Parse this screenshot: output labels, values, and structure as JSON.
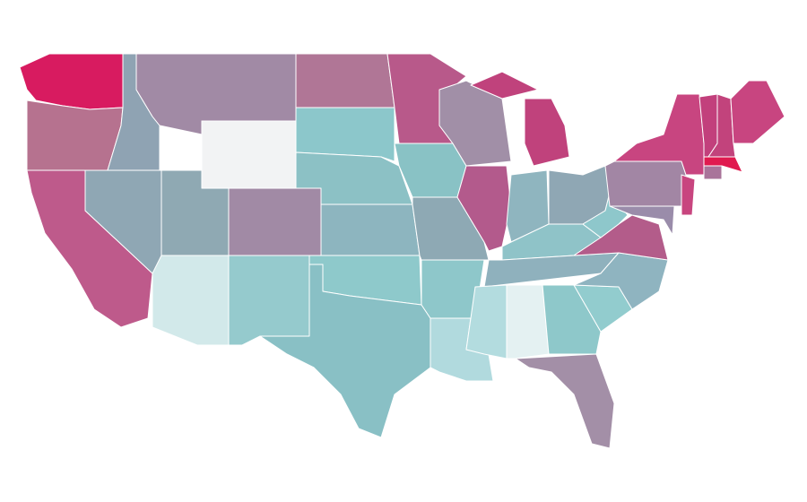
{
  "map": {
    "regions": [
      {
        "color": "#d81b60"
      },
      {
        "color": "#b6728f"
      },
      {
        "color": "#be5a8b"
      },
      {
        "color": "#8fa7b4"
      },
      {
        "color": "#8fa3b3"
      },
      {
        "color": "#a18aa5"
      },
      {
        "color": "#f2f3f4"
      },
      {
        "color": "#8fa9b3"
      },
      {
        "color": "#d2e9ea"
      },
      {
        "color": "#a18aa5"
      },
      {
        "color": "#95cacd"
      },
      {
        "color": "#b07696"
      },
      {
        "color": "#8cc7cb"
      },
      {
        "color": "#8cc1c5"
      },
      {
        "color": "#8db5bf"
      },
      {
        "color": "#8ec9cb"
      },
      {
        "color": "#89c0c5"
      },
      {
        "color": "#b8598a"
      },
      {
        "color": "#89c2c5"
      },
      {
        "color": "#8ea9b4"
      },
      {
        "color": "#8ec7ca"
      },
      {
        "color": "#b1dade"
      },
      {
        "color": "#a18fa7"
      },
      {
        "color": "#b35a8c"
      },
      {
        "color": "#c0427c"
      },
      {
        "color": "#8fb5bf"
      },
      {
        "color": "#8fa7b4"
      },
      {
        "color": "#8fc3c8"
      },
      {
        "color": "#8fb1bd"
      },
      {
        "color": "#b3dcdf"
      },
      {
        "color": "#e4f1f2"
      },
      {
        "color": "#8ec8ca"
      },
      {
        "color": "#a38fa7"
      },
      {
        "color": "#92ccce"
      },
      {
        "color": "#8fb4c0"
      },
      {
        "color": "#b35c8a"
      },
      {
        "color": "#8ec7cb"
      },
      {
        "color": "#a286a4"
      },
      {
        "color": "#c84580"
      },
      {
        "color": "#9a8caa"
      },
      {
        "color": "#c8457f"
      },
      {
        "color": "#a9749a"
      },
      {
        "color": "#e01a4f"
      },
      {
        "color": "#c2407c"
      },
      {
        "color": "#c2437c"
      },
      {
        "color": "#c84580"
      }
    ]
  }
}
